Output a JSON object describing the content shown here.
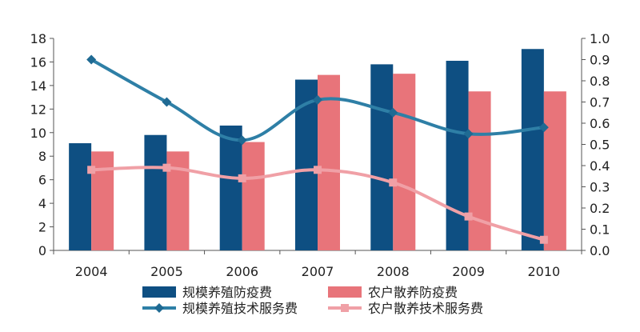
{
  "chart_data": {
    "type": "bar",
    "categories": [
      "2004",
      "2005",
      "2006",
      "2007",
      "2008",
      "2009",
      "2010"
    ],
    "y_left_ticks": [
      "0",
      "2",
      "4",
      "6",
      "8",
      "10",
      "12",
      "14",
      "16",
      "18"
    ],
    "y_right_ticks": [
      "0.0",
      "0.1",
      "0.2",
      "0.3",
      "0.4",
      "0.5",
      "0.6",
      "0.7",
      "0.8",
      "0.9",
      "1.0"
    ],
    "ylim_left": [
      0,
      18
    ],
    "ylim_right": [
      0,
      1.0
    ],
    "grid": false,
    "legend_position": "bottom",
    "series": [
      {
        "name": "规模养殖防疫费",
        "kind": "bar",
        "axis": "left",
        "color": "#0e4f82",
        "values": [
          9.1,
          9.8,
          10.6,
          14.5,
          15.8,
          16.1,
          17.1
        ]
      },
      {
        "name": "农户散养防疫费",
        "kind": "bar",
        "axis": "left",
        "color": "#e8747a",
        "values": [
          8.4,
          8.4,
          9.2,
          14.9,
          15.0,
          13.5,
          13.5
        ]
      },
      {
        "name": "规模养殖技术服务费",
        "kind": "line",
        "axis": "right",
        "color": "#2e7fa6",
        "marker": "diamond",
        "values": [
          0.9,
          0.7,
          0.52,
          0.71,
          0.65,
          0.55,
          0.58
        ]
      },
      {
        "name": "农户散养技术服务费",
        "kind": "line",
        "axis": "right",
        "color": "#f0a0a6",
        "marker": "square",
        "values": [
          0.38,
          0.39,
          0.34,
          0.38,
          0.32,
          0.16,
          0.05
        ]
      }
    ]
  }
}
